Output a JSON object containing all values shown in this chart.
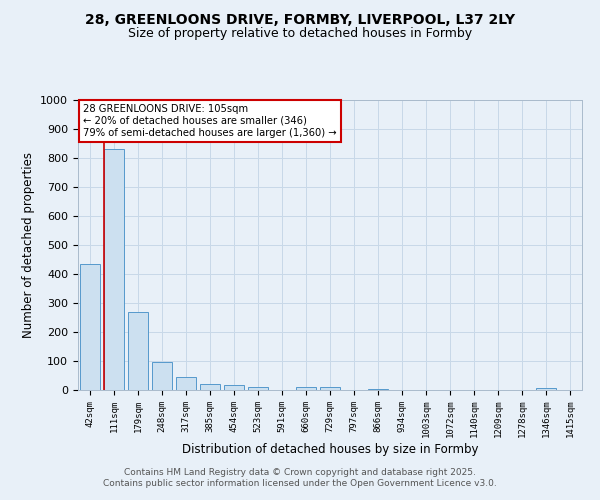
{
  "title_line1": "28, GREENLOONS DRIVE, FORMBY, LIVERPOOL, L37 2LY",
  "title_line2": "Size of property relative to detached houses in Formby",
  "xlabel": "Distribution of detached houses by size in Formby",
  "ylabel": "Number of detached properties",
  "bin_labels": [
    "42sqm",
    "111sqm",
    "179sqm",
    "248sqm",
    "317sqm",
    "385sqm",
    "454sqm",
    "523sqm",
    "591sqm",
    "660sqm",
    "729sqm",
    "797sqm",
    "866sqm",
    "934sqm",
    "1003sqm",
    "1072sqm",
    "1140sqm",
    "1209sqm",
    "1278sqm",
    "1346sqm",
    "1415sqm"
  ],
  "bar_values": [
    435,
    830,
    270,
    95,
    45,
    22,
    16,
    9,
    0,
    10,
    9,
    0,
    4,
    0,
    0,
    0,
    0,
    0,
    0,
    8,
    0
  ],
  "bar_color": "#cce0f0",
  "bar_edge_color": "#5599cc",
  "annotation_text": "28 GREENLOONS DRIVE: 105sqm\n← 20% of detached houses are smaller (346)\n79% of semi-detached houses are larger (1,360) →",
  "annotation_box_color": "#ffffff",
  "annotation_box_edge_color": "#cc0000",
  "red_line_color": "#cc0000",
  "ylim": [
    0,
    1000
  ],
  "yticks": [
    0,
    100,
    200,
    300,
    400,
    500,
    600,
    700,
    800,
    900,
    1000
  ],
  "grid_color": "#c8d8e8",
  "background_color": "#e8f0f8",
  "footer_line1": "Contains HM Land Registry data © Crown copyright and database right 2025.",
  "footer_line2": "Contains public sector information licensed under the Open Government Licence v3.0."
}
